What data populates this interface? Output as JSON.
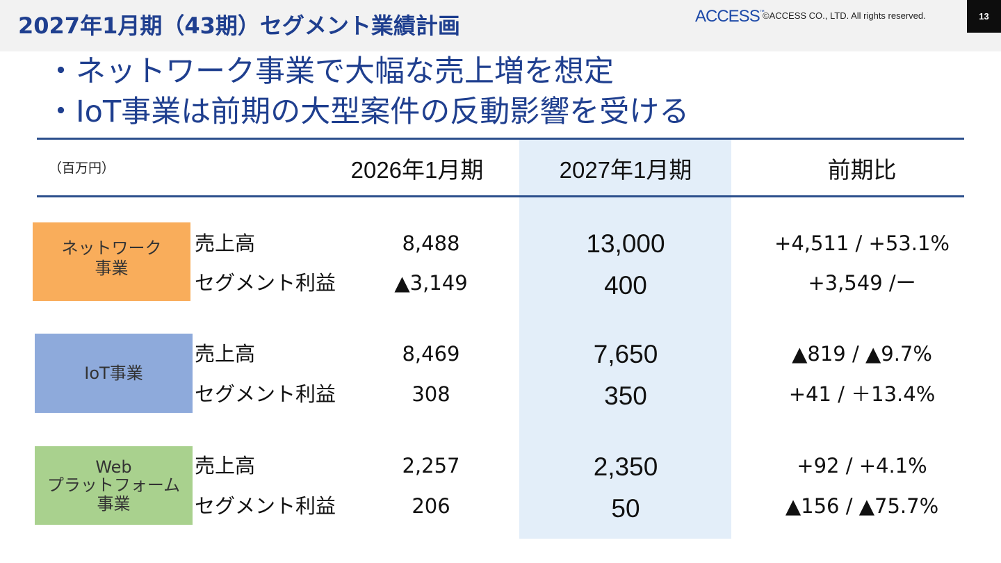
{
  "header": {
    "title": "2027年1月期（43期）セグメント業績計画",
    "logo_text": "ACCESS",
    "logo_tm": "™",
    "copyright": "©ACCESS CO., LTD. All rights reserved.",
    "page_number": "13"
  },
  "bullets": [
    "・ネットワーク事業で大幅な売上増を想定",
    "・IoT事業は前期の大型案件の反動影響を受ける"
  ],
  "table": {
    "unit": "（百万円）",
    "columns": {
      "prev": "2026年1月期",
      "curr": "2027年1月期",
      "yoy": "前期比"
    },
    "segments": [
      {
        "name": "ネットワーク\n事業",
        "rows": [
          {
            "label": "売上高",
            "prev": "8,488",
            "curr": "13,000",
            "yoy": "+4,511 / +53.1%"
          },
          {
            "label": "セグメント利益",
            "prev": "▲3,149",
            "curr": "400",
            "yoy": "+3,549 /ー"
          }
        ]
      },
      {
        "name": "IoT事業",
        "rows": [
          {
            "label": "売上高",
            "prev": "8,469",
            "curr": "7,650",
            "yoy": "▲819 / ▲9.7%"
          },
          {
            "label": "セグメント利益",
            "prev": "308",
            "curr": "350",
            "yoy": "+41 / ＋13.4%"
          }
        ]
      },
      {
        "name": "Web\nプラットフォーム\n事業",
        "rows": [
          {
            "label": "売上高",
            "prev": "2,257",
            "curr": "2,350",
            "yoy": "+92 / +4.1%"
          },
          {
            "label": "セグメント利益",
            "prev": "206",
            "curr": "50",
            "yoy": "▲156 / ▲75.7%"
          }
        ]
      }
    ]
  },
  "colors": {
    "title_blue": "#1f3f8f",
    "rule": "#2c4f8c",
    "highlight": "#e3eef9",
    "network": "#f9ad5b",
    "iot": "#8eaadb",
    "web": "#a9d18e"
  }
}
